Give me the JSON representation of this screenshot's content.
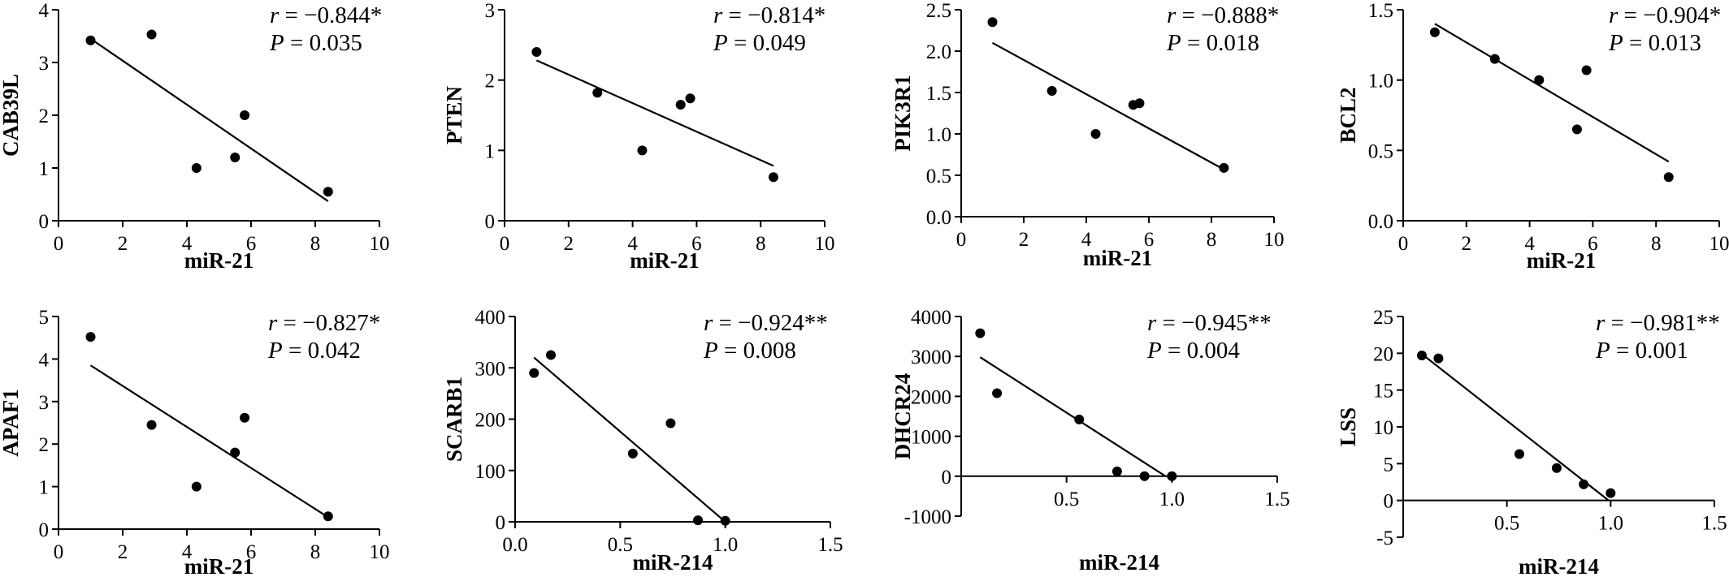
{
  "chart_data": [
    {
      "type": "scatter",
      "ylabel": "CAB39L",
      "xlabel": "miR-21",
      "x": [
        1.0,
        2.9,
        4.3,
        5.5,
        5.8,
        8.4
      ],
      "y": [
        3.42,
        3.53,
        1.0,
        1.2,
        2.0,
        0.55
      ],
      "fit": {
        "x": [
          1.0,
          8.4
        ],
        "y": [
          3.45,
          0.37
        ]
      },
      "xlim": [
        0,
        10
      ],
      "ylim": [
        0,
        4
      ],
      "xticks": [
        "0",
        "2",
        "4",
        "6",
        "8",
        "10"
      ],
      "yticks": [
        "0",
        "1",
        "2",
        "3",
        "4"
      ],
      "r_label": "r",
      "r_text": " = −0.844*",
      "p_label": "P",
      "p_text": " = 0.035"
    },
    {
      "type": "scatter",
      "ylabel": "PTEN",
      "xlabel": "miR-21",
      "x": [
        1.0,
        2.9,
        4.3,
        5.5,
        5.8,
        8.4
      ],
      "y": [
        2.4,
        1.82,
        1.0,
        1.65,
        1.74,
        0.62
      ],
      "fit": {
        "x": [
          1.0,
          8.4
        ],
        "y": [
          2.28,
          0.78
        ]
      },
      "xlim": [
        0,
        10
      ],
      "ylim": [
        0,
        3
      ],
      "xticks": [
        "0",
        "2",
        "4",
        "6",
        "8",
        "10"
      ],
      "yticks": [
        "0",
        "1",
        "2",
        "3"
      ],
      "r_label": "r",
      "r_text": " = −0.814*",
      "p_label": "P",
      "p_text": " = 0.049"
    },
    {
      "type": "scatter",
      "ylabel": "PIK3R1",
      "xlabel": "miR-21",
      "x": [
        1.0,
        2.9,
        4.3,
        5.5,
        5.7,
        8.4
      ],
      "y": [
        2.35,
        1.52,
        1.0,
        1.35,
        1.37,
        0.59
      ],
      "fit": {
        "x": [
          1.0,
          8.4
        ],
        "y": [
          2.1,
          0.57
        ]
      },
      "xlim": [
        0,
        10
      ],
      "ylim": [
        0,
        2.5
      ],
      "xticks": [
        "0",
        "2",
        "4",
        "6",
        "8",
        "10"
      ],
      "yticks": [
        "0.0",
        "0.5",
        "1.0",
        "1.5",
        "2.0",
        "2.5"
      ],
      "r_label": "r",
      "r_text": " = −0.888*",
      "p_label": "P",
      "p_text": " = 0.018"
    },
    {
      "type": "scatter",
      "ylabel": "BCL2",
      "xlabel": "miR-21",
      "x": [
        1.0,
        2.9,
        4.3,
        5.5,
        5.8,
        8.4
      ],
      "y": [
        1.34,
        1.15,
        1.0,
        0.65,
        1.07,
        0.31
      ],
      "fit": {
        "x": [
          1.0,
          8.4
        ],
        "y": [
          1.4,
          0.42
        ]
      },
      "xlim": [
        0,
        10
      ],
      "ylim": [
        0,
        1.5
      ],
      "xticks": [
        "0",
        "2",
        "4",
        "6",
        "8",
        "10"
      ],
      "yticks": [
        "0.0",
        "0.5",
        "1.0",
        "1.5"
      ],
      "r_label": "r",
      "r_text": " = −0.904*",
      "p_label": "P",
      "p_text": " = 0.013"
    },
    {
      "type": "scatter",
      "ylabel": "APAF1",
      "xlabel": "miR-21",
      "x": [
        1.0,
        2.9,
        4.3,
        5.5,
        5.8,
        8.4
      ],
      "y": [
        4.52,
        2.45,
        1.0,
        1.8,
        2.62,
        0.3
      ],
      "fit": {
        "x": [
          1.0,
          8.4
        ],
        "y": [
          3.85,
          0.28
        ]
      },
      "xlim": [
        0,
        10
      ],
      "ylim": [
        0,
        5
      ],
      "xticks": [
        "0",
        "2",
        "4",
        "6",
        "8",
        "10"
      ],
      "yticks": [
        "0",
        "1",
        "2",
        "3",
        "4",
        "5"
      ],
      "r_label": "r",
      "r_text": " = −0.827*",
      "p_label": "P",
      "p_text": " = 0.042"
    },
    {
      "type": "scatter",
      "ylabel": "SCARB1",
      "xlabel": "miR-214",
      "x": [
        0.09,
        0.17,
        0.56,
        0.74,
        0.87,
        1.0
      ],
      "y": [
        290,
        325,
        133,
        192,
        3,
        2
      ],
      "fit": {
        "x": [
          0.09,
          1.0
        ],
        "y": [
          320,
          0
        ]
      },
      "xlim": [
        0,
        1.5
      ],
      "ylim": [
        0,
        400
      ],
      "xticks": [
        "0.0",
        "0.5",
        "1.0",
        "1.5"
      ],
      "yticks": [
        "0",
        "100",
        "200",
        "300",
        "400"
      ],
      "r_label": "r",
      "r_text": " = −0.924**",
      "p_label": "P",
      "p_text": " = 0.008"
    },
    {
      "type": "scatter",
      "ylabel": "DHCR24",
      "xlabel": "miR-214",
      "x": [
        0.09,
        0.17,
        0.56,
        0.74,
        0.87,
        1.0
      ],
      "y": [
        3580,
        2080,
        1420,
        120,
        0,
        0
      ],
      "fit": {
        "x": [
          0.09,
          0.97
        ],
        "y": [
          2980,
          0
        ]
      },
      "xlim": [
        0,
        1.5
      ],
      "ylim": [
        -1000,
        4000
      ],
      "xaxis_at": 0,
      "xticks": [
        "0.5",
        "1.0",
        "1.5"
      ],
      "yticks": [
        "-1000",
        "0",
        "1000",
        "2000",
        "3000",
        "4000"
      ],
      "r_label": "r",
      "r_text": " = −0.945**",
      "p_label": "P",
      "p_text": " = 0.004"
    },
    {
      "type": "scatter",
      "ylabel": "LSS",
      "xlabel": "miR-214",
      "x": [
        0.09,
        0.17,
        0.56,
        0.74,
        0.87,
        1.0
      ],
      "y": [
        19.7,
        19.3,
        6.3,
        4.4,
        2.2,
        1.0
      ],
      "fit": {
        "x": [
          0.09,
          0.99
        ],
        "y": [
          19.9,
          0
        ]
      },
      "xlim": [
        0,
        1.5
      ],
      "ylim": [
        -5,
        25
      ],
      "xaxis_at": 0,
      "xticks": [
        "0.5",
        "1.0",
        "1.5"
      ],
      "yticks": [
        "-5",
        "0",
        "5",
        "10",
        "15",
        "20",
        "25"
      ],
      "r_label": "r",
      "r_text": " = −0.981**",
      "p_label": "P",
      "p_text": " = 0.001"
    }
  ]
}
